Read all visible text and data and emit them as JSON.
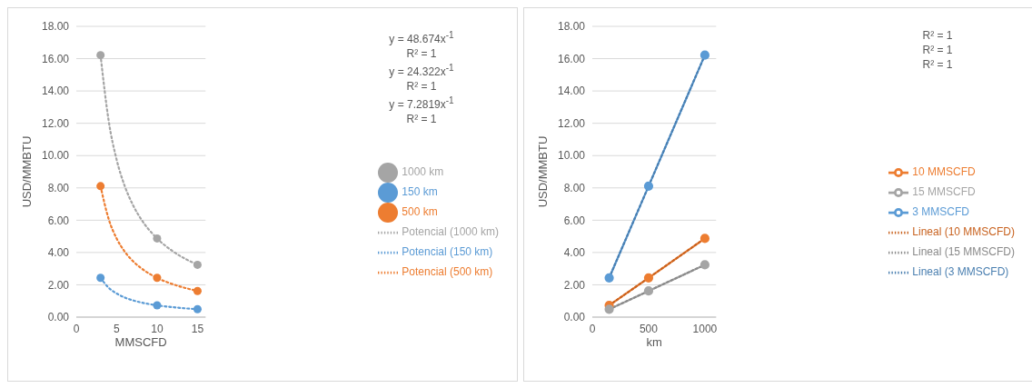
{
  "chart_data": [
    {
      "type": "scatter",
      "xlabel": "MMSCFD",
      "ylabel": "USD/MMBTU",
      "xlim": [
        0,
        16
      ],
      "xticks": [
        0,
        5,
        10,
        15
      ],
      "ylim": [
        0,
        18
      ],
      "yticks": [
        {
          "value": 0,
          "label": "0.00"
        },
        {
          "value": 2,
          "label": "2.00"
        },
        {
          "value": 4,
          "label": "4.00"
        },
        {
          "value": 6,
          "label": "6.00"
        },
        {
          "value": 8,
          "label": "8.00"
        },
        {
          "value": 10,
          "label": "10.00"
        },
        {
          "value": 12,
          "label": "12.00"
        },
        {
          "value": 14,
          "label": "14.00"
        },
        {
          "value": 16,
          "label": "16.00"
        },
        {
          "value": 18,
          "label": "18.00"
        }
      ],
      "grid": "y",
      "legend": "right",
      "marker": "circle",
      "annotations": [
        "y = 48.674x$^{-1}$",
        "R² = 1",
        "y = 24.322x$^{-1}$",
        "R² = 1",
        "y = 7.2819x$^{-1}$",
        "R² = 1"
      ],
      "series": [
        {
          "name": "150 km",
          "color": "#5b9bd5",
          "x": [
            3,
            10,
            15
          ],
          "values": [
            2.43,
            0.73,
            0.49
          ]
        },
        {
          "name": "500 km",
          "color": "#ed7d31",
          "x": [
            3,
            10,
            15
          ],
          "values": [
            8.11,
            2.43,
            1.62
          ]
        },
        {
          "name": "1000 km",
          "color": "#a5a5a5",
          "x": [
            3,
            10,
            15
          ],
          "values": [
            16.22,
            4.87,
            3.24
          ]
        },
        {
          "name": "Potencial (150 km)",
          "type": "line",
          "line_style": "dotted",
          "marker": "none",
          "color": "#5b9bd5",
          "x": [
            3,
            4,
            5,
            6,
            7,
            8,
            10,
            12,
            15
          ],
          "values": [
            2.43,
            1.82,
            1.46,
            1.21,
            1.04,
            0.91,
            0.73,
            0.61,
            0.49
          ]
        },
        {
          "name": "Potencial (500 km)",
          "type": "line",
          "line_style": "dotted",
          "marker": "none",
          "color": "#ed7d31",
          "x": [
            3,
            4,
            5,
            6,
            7,
            8,
            10,
            12,
            15
          ],
          "values": [
            8.11,
            6.08,
            4.86,
            4.05,
            3.47,
            3.04,
            2.43,
            2.03,
            1.62
          ]
        },
        {
          "name": "Potencial (1000 km)",
          "type": "line",
          "line_style": "dotted",
          "marker": "none",
          "color": "#a5a5a5",
          "x": [
            3,
            4,
            5,
            6,
            7,
            8,
            10,
            12,
            15
          ],
          "values": [
            16.22,
            12.17,
            9.73,
            8.11,
            6.95,
            6.08,
            4.87,
            4.06,
            3.24
          ]
        }
      ]
    },
    {
      "type": "line",
      "xlabel": "km",
      "ylabel": "USD/MMBTU",
      "xlim": [
        0,
        1100
      ],
      "xticks": [
        0,
        500,
        1000
      ],
      "ylim": [
        0,
        18
      ],
      "yticks": [
        {
          "value": 0,
          "label": "0.00"
        },
        {
          "value": 2,
          "label": "2.00"
        },
        {
          "value": 4,
          "label": "4.00"
        },
        {
          "value": 6,
          "label": "6.00"
        },
        {
          "value": 8,
          "label": "8.00"
        },
        {
          "value": 10,
          "label": "10.00"
        },
        {
          "value": 12,
          "label": "12.00"
        },
        {
          "value": 14,
          "label": "14.00"
        },
        {
          "value": 16,
          "label": "16.00"
        },
        {
          "value": 18,
          "label": "18.00"
        }
      ],
      "grid": "y",
      "legend": "right",
      "marker": "circle",
      "line_style": "solid",
      "annotations": [
        "R² = 1",
        "R² = 1",
        "R² = 1"
      ],
      "series": [
        {
          "name": "3 MMSCFD",
          "color": "#5b9bd5",
          "x": [
            150,
            500,
            1000
          ],
          "values": [
            2.43,
            8.11,
            16.22
          ]
        },
        {
          "name": "10 MMSCFD",
          "color": "#ed7d31",
          "x": [
            150,
            500,
            1000
          ],
          "values": [
            0.73,
            2.43,
            4.87
          ]
        },
        {
          "name": "15 MMSCFD",
          "color": "#a5a5a5",
          "x": [
            150,
            500,
            1000
          ],
          "values": [
            0.49,
            1.62,
            3.24
          ]
        },
        {
          "name": "Lineal (3 MMSCFD)",
          "line_style": "dotted",
          "marker": "none",
          "color": "#4a7fb0",
          "x": [
            150,
            500,
            1000
          ],
          "values": [
            2.43,
            8.11,
            16.22
          ]
        },
        {
          "name": "Lineal (10 MMSCFD)",
          "line_style": "dotted",
          "marker": "none",
          "color": "#c8621f",
          "x": [
            150,
            500,
            1000
          ],
          "values": [
            0.73,
            2.43,
            4.87
          ]
        },
        {
          "name": "Lineal (15 MMSCFD)",
          "line_style": "dotted",
          "marker": "none",
          "color": "#8a8a8a",
          "x": [
            150,
            500,
            1000
          ],
          "values": [
            0.49,
            1.62,
            3.24
          ]
        }
      ]
    }
  ]
}
